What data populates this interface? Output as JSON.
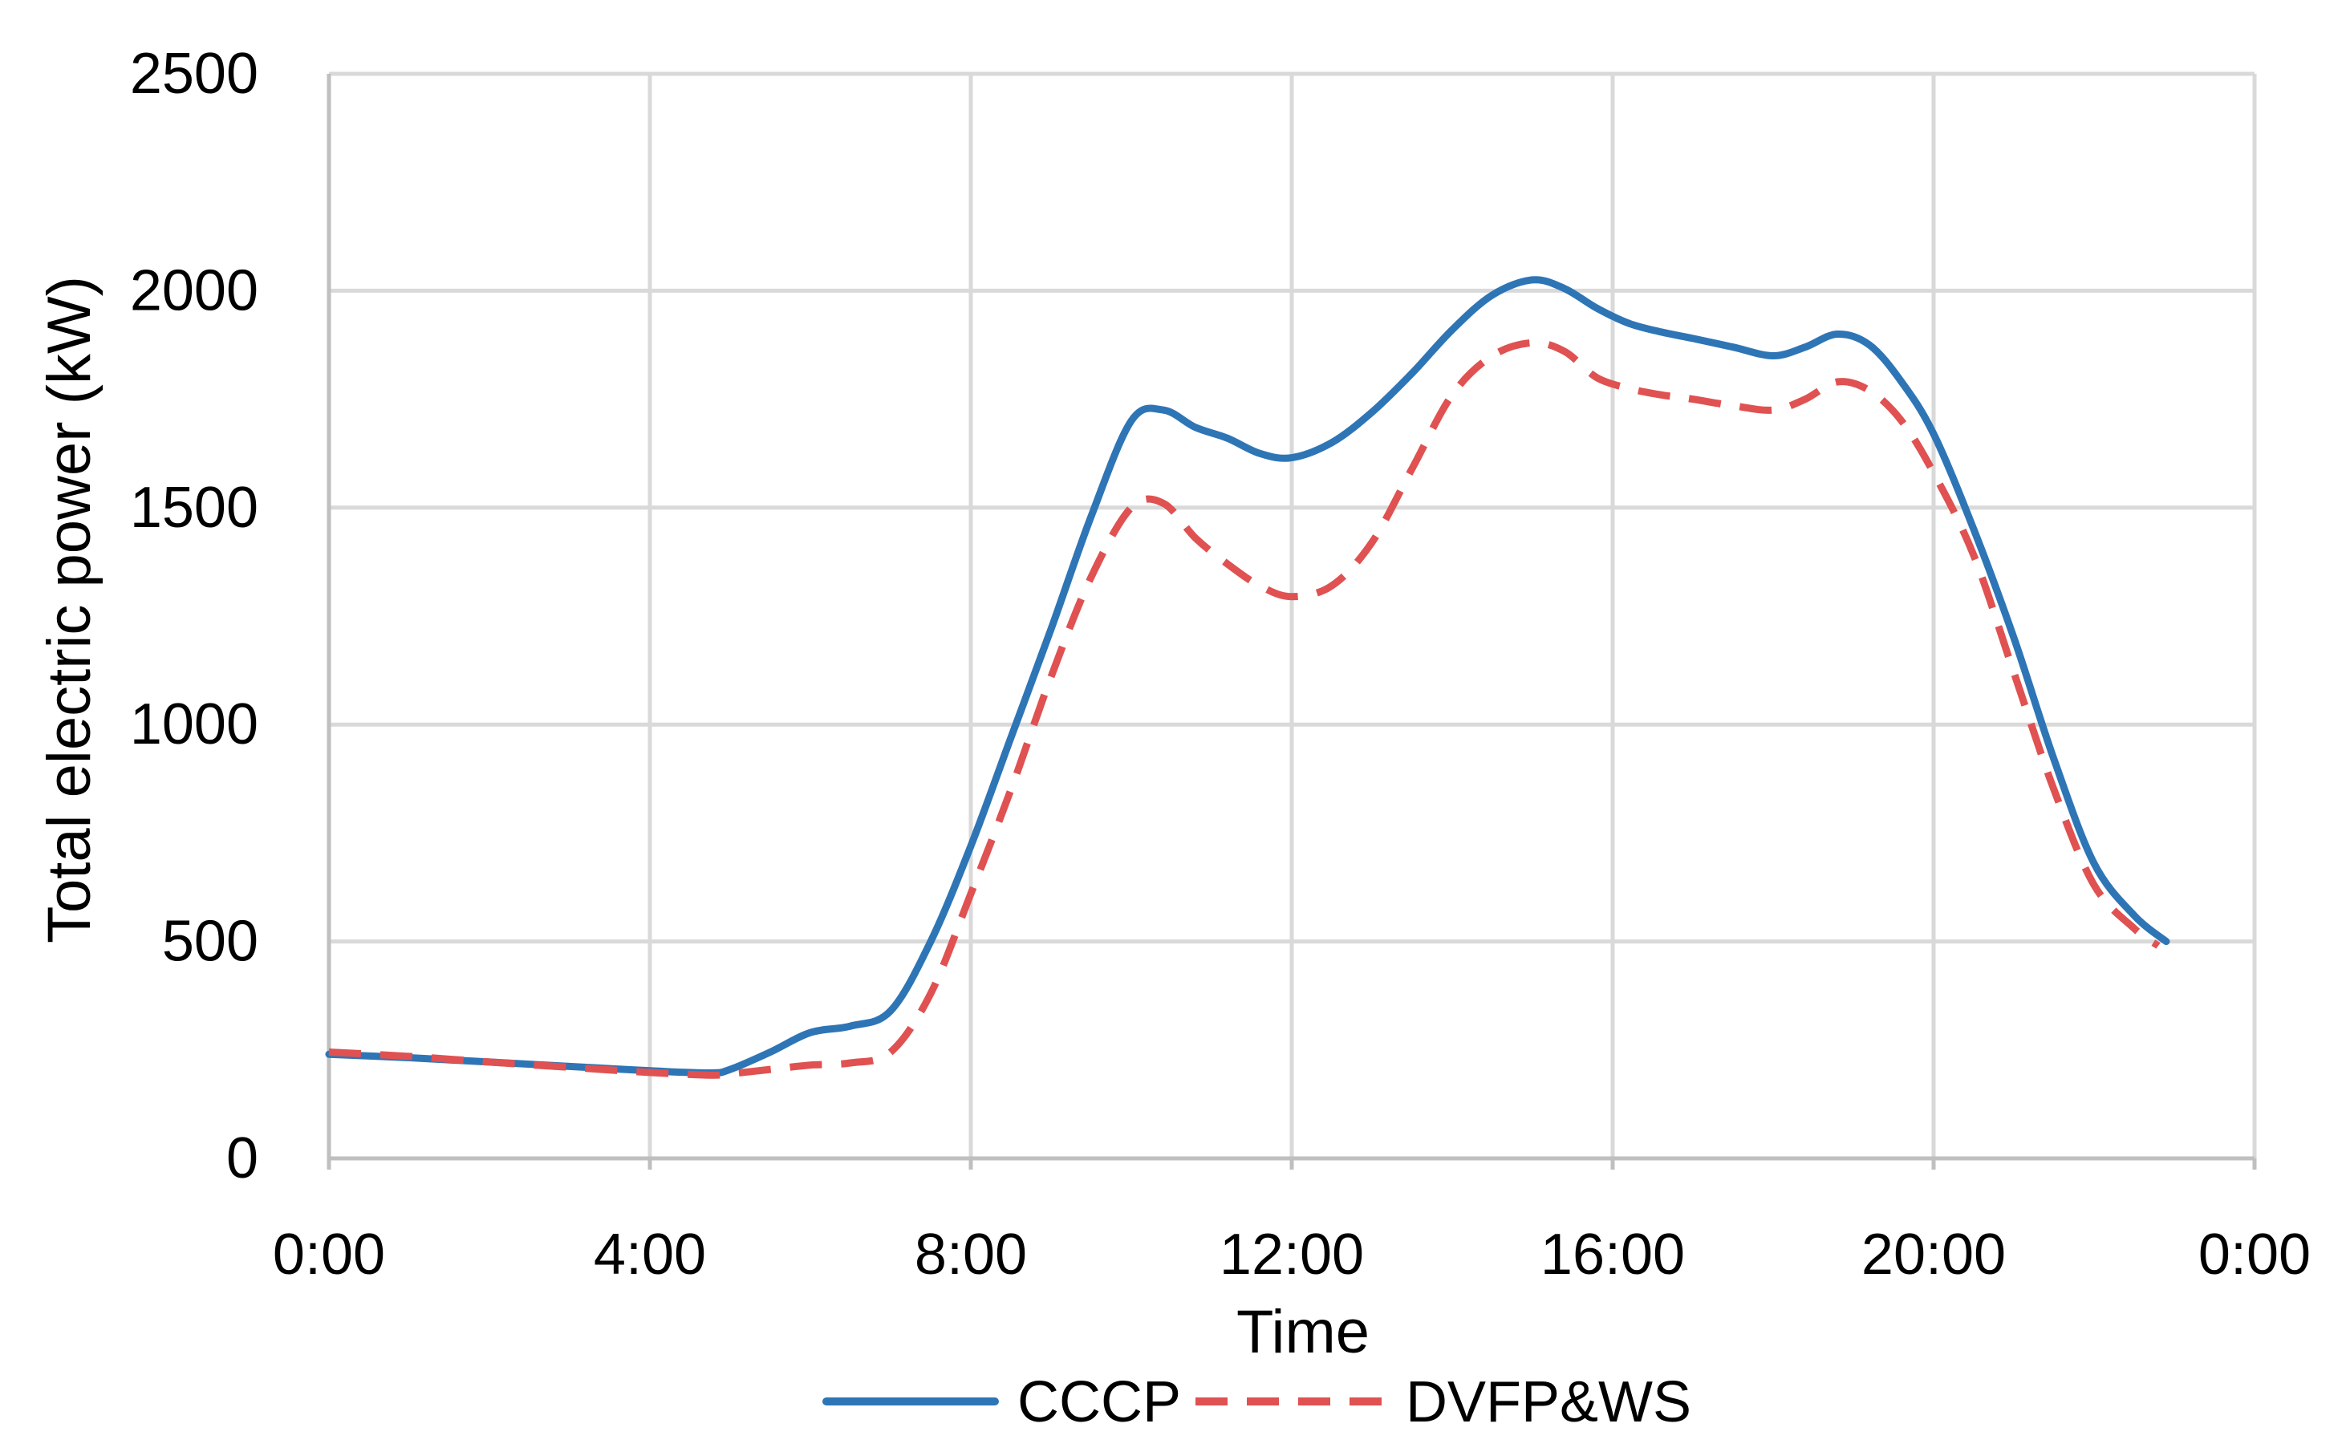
{
  "chart_data": {
    "type": "line",
    "title": "",
    "xlabel": "Time",
    "ylabel": "Total electric power (kW)",
    "xlim": [
      0,
      24
    ],
    "ylim": [
      0,
      2500
    ],
    "grid": true,
    "legend_position": "bottom",
    "x_tick_labels": [
      "0:00",
      "4:00",
      "8:00",
      "12:00",
      "16:00",
      "20:00",
      "0:00"
    ],
    "x_ticks": [
      0,
      4,
      8,
      12,
      16,
      20,
      24
    ],
    "y_tick_labels": [
      "0",
      "500",
      "1000",
      "1500",
      "2000",
      "2500"
    ],
    "y_ticks": [
      0,
      500,
      1000,
      1500,
      2000,
      2500
    ],
    "series": [
      {
        "name": "CCCP",
        "color": "#2e75b6",
        "dash": "solid",
        "x": [
          0,
          1,
          2,
          3,
          4,
          4.75,
          5,
          5.5,
          6,
          6.5,
          7,
          7.5,
          8,
          8.5,
          9,
          9.5,
          10,
          10.4,
          10.8,
          11.2,
          11.6,
          12,
          12.5,
          13,
          13.5,
          14,
          14.5,
          15,
          15.4,
          15.8,
          16.2,
          16.6,
          17,
          17.5,
          18,
          18.4,
          18.8,
          19.2,
          19.6,
          20,
          20.5,
          21,
          21.5,
          22,
          22.5,
          22.9
        ],
        "y": [
          240,
          232,
          222,
          212,
          202,
          197,
          205,
          245,
          290,
          305,
          340,
          500,
          720,
          970,
          1220,
          1480,
          1700,
          1725,
          1685,
          1660,
          1625,
          1615,
          1650,
          1720,
          1810,
          1910,
          1990,
          2025,
          2005,
          1960,
          1925,
          1905,
          1890,
          1870,
          1850,
          1870,
          1900,
          1875,
          1790,
          1670,
          1450,
          1200,
          920,
          680,
          560,
          500
        ]
      },
      {
        "name": "DVFP&WS",
        "color": "#e05151",
        "dash": "dashed",
        "x": [
          0,
          1,
          2,
          3,
          4,
          4.75,
          5,
          5.5,
          6,
          6.5,
          7,
          7.5,
          8,
          8.5,
          9,
          9.5,
          10,
          10.4,
          10.8,
          11.2,
          11.6,
          12,
          12.5,
          13,
          13.5,
          14,
          14.5,
          15,
          15.4,
          15.8,
          16.2,
          16.6,
          17,
          17.5,
          18,
          18.4,
          18.8,
          19.2,
          19.6,
          20,
          20.5,
          21,
          21.5,
          22,
          22.5,
          22.8
        ],
        "y": [
          245,
          235,
          222,
          210,
          198,
          192,
          195,
          205,
          215,
          220,
          245,
          380,
          610,
          850,
          1110,
          1340,
          1500,
          1510,
          1430,
          1370,
          1320,
          1295,
          1320,
          1420,
          1590,
          1760,
          1850,
          1880,
          1860,
          1800,
          1775,
          1760,
          1750,
          1735,
          1725,
          1750,
          1790,
          1770,
          1700,
          1580,
          1390,
          1120,
          850,
          630,
          530,
          490
        ]
      }
    ]
  }
}
